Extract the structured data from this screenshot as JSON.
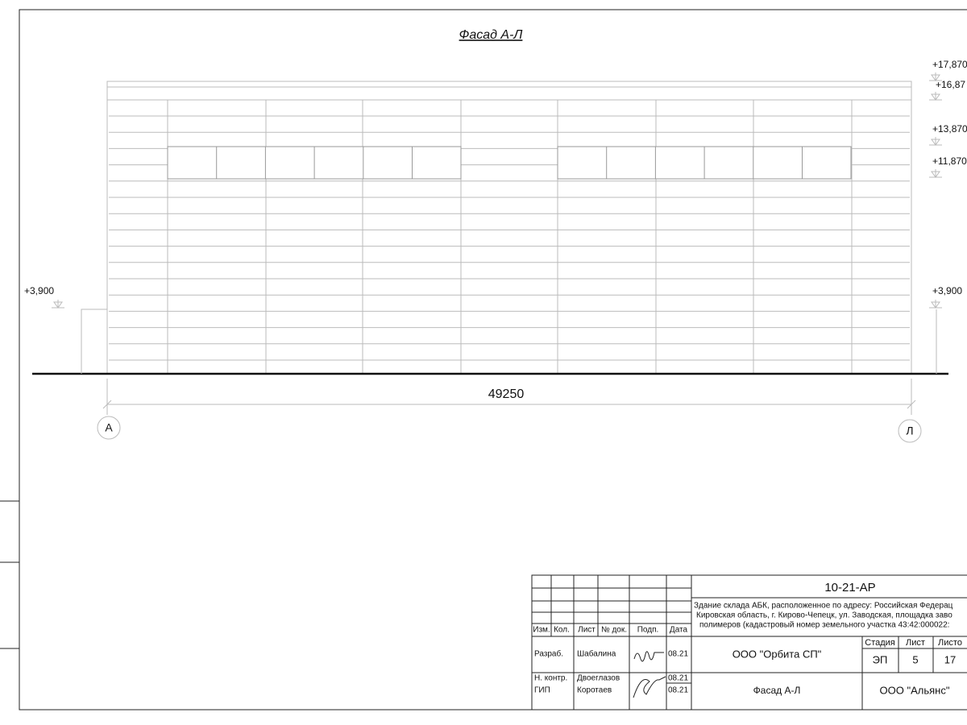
{
  "title": "Фасад А-Л",
  "elevations": {
    "right": [
      "+17,870",
      "+16,87",
      "+13,870",
      "+11,870",
      "+3,900"
    ],
    "left": "+3,900"
  },
  "dimension": "49250",
  "axes": [
    "А",
    "Л"
  ],
  "stamp": {
    "code": "10-21-АР",
    "description": [
      "Здание склада АБК, расположенное по адресу: Российская Федерац",
      "Кировская область, г. Кирово-Чепецк, ул. Заводская, площадка заво",
      "полимеров (кадастровый номер земельного участка 43:42:000022:"
    ],
    "headers": [
      "Изм.",
      "Кол.",
      "Лист",
      "№ док.",
      "Подп.",
      "Дата"
    ],
    "rows": [
      [
        "Разраб.",
        "Шабалина",
        "08.21"
      ],
      [
        "Н. контр.",
        "Двоеглазов",
        "08.21"
      ],
      [
        "ГИП",
        "Коротаев",
        "08.21"
      ]
    ],
    "designer": "ООО \"Орбита СП\"",
    "stage_headers": [
      "Стадия",
      "Лист",
      "Листо"
    ],
    "stage_values": [
      "ЭП",
      "5",
      "17"
    ],
    "sheet_title": "Фасад А-Л",
    "client": "ООО \"Альянс\""
  }
}
